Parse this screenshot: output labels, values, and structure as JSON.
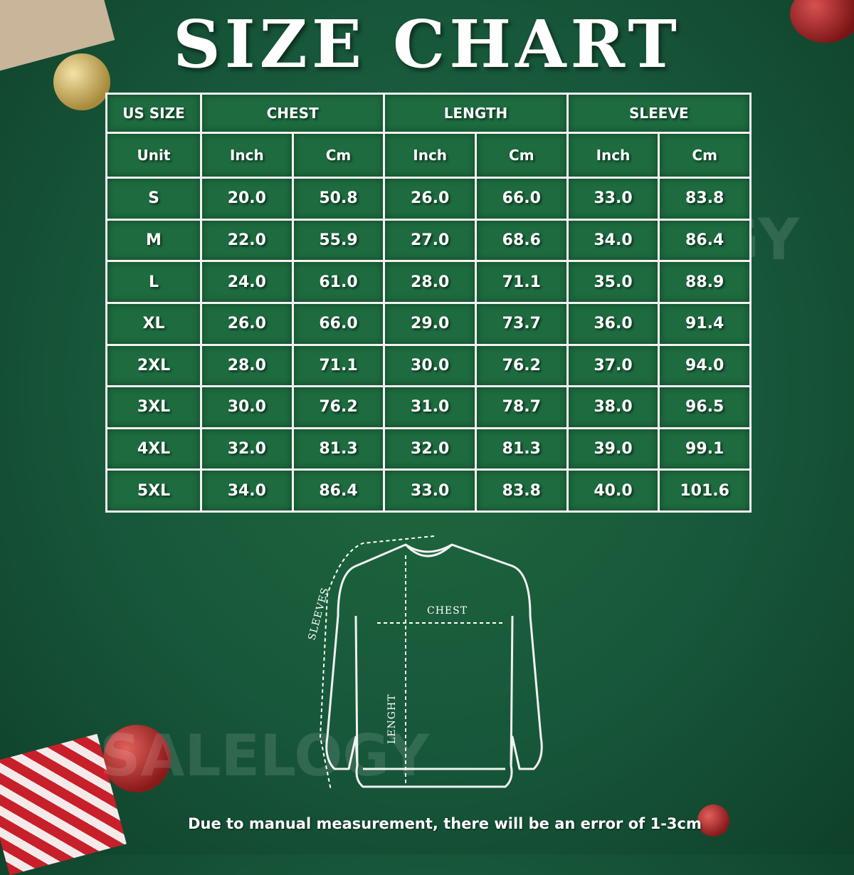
{
  "title": "SIZE CHART",
  "watermark": "SALELOGY",
  "table": {
    "groups": [
      {
        "label": "US SIZE"
      },
      {
        "label": "CHEST"
      },
      {
        "label": "LENGTH"
      },
      {
        "label": "SLEEVE"
      }
    ],
    "unit_row": [
      "Unit",
      "Inch",
      "Cm",
      "Inch",
      "Cm",
      "Inch",
      "Cm"
    ],
    "rows": [
      [
        "S",
        "20.0",
        "50.8",
        "26.0",
        "66.0",
        "33.0",
        "83.8"
      ],
      [
        "M",
        "22.0",
        "55.9",
        "27.0",
        "68.6",
        "34.0",
        "86.4"
      ],
      [
        "L",
        "24.0",
        "61.0",
        "28.0",
        "71.1",
        "35.0",
        "88.9"
      ],
      [
        "XL",
        "26.0",
        "66.0",
        "29.0",
        "73.7",
        "36.0",
        "91.4"
      ],
      [
        "2XL",
        "28.0",
        "71.1",
        "30.0",
        "76.2",
        "37.0",
        "94.0"
      ],
      [
        "3XL",
        "30.0",
        "76.2",
        "31.0",
        "78.7",
        "38.0",
        "96.5"
      ],
      [
        "4XL",
        "32.0",
        "81.3",
        "32.0",
        "81.3",
        "39.0",
        "99.1"
      ],
      [
        "5XL",
        "34.0",
        "86.4",
        "33.0",
        "83.8",
        "40.0",
        "101.6"
      ]
    ]
  },
  "diagram": {
    "chest": "CHEST",
    "length": "LENGHT",
    "sleeves": "SLEEVES"
  },
  "note": "Due to manual measurement, there will be an error of 1-3cm",
  "colors": {
    "background": "#17573a",
    "cell": "#1d6b3f",
    "grid_line": "#f2f2f2"
  }
}
